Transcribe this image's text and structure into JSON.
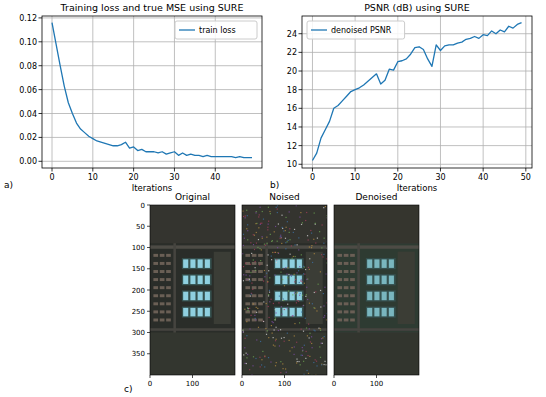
{
  "chart_data": [
    {
      "type": "line",
      "title": "Training loss and true MSE using SURE",
      "x_label": "Iterations",
      "annotations": [
        "a)"
      ],
      "x": [
        0,
        1,
        2,
        3,
        4,
        5,
        6,
        7,
        8,
        9,
        10,
        11,
        12,
        13,
        14,
        15,
        16,
        17,
        18,
        19,
        20,
        21,
        22,
        23,
        24,
        25,
        26,
        27,
        28,
        29,
        30,
        31,
        32,
        33,
        34,
        35,
        36,
        37,
        38,
        39,
        40,
        41,
        42,
        43,
        44,
        45,
        46,
        47,
        48,
        49
      ],
      "series": [
        {
          "name": "train loss",
          "color": "#1f77b4",
          "values": [
            0.116,
            0.098,
            0.08,
            0.063,
            0.049,
            0.04,
            0.032,
            0.027,
            0.024,
            0.021,
            0.019,
            0.017,
            0.016,
            0.015,
            0.014,
            0.013,
            0.013,
            0.014,
            0.016,
            0.011,
            0.012,
            0.009,
            0.01,
            0.008,
            0.008,
            0.008,
            0.007,
            0.008,
            0.006,
            0.007,
            0.008,
            0.005,
            0.007,
            0.005,
            0.006,
            0.005,
            0.005,
            0.004,
            0.005,
            0.004,
            0.004,
            0.004,
            0.004,
            0.004,
            0.004,
            0.003,
            0.004,
            0.003,
            0.003,
            0.003
          ]
        }
      ],
      "xlim": [
        -2.45,
        51.45
      ],
      "xticks": [
        0,
        10,
        20,
        30,
        40
      ],
      "ylim": [
        -0.0056,
        0.1216
      ],
      "yticks": [
        {
          "value": 0,
          "label": "0.00"
        },
        {
          "value": 0.02,
          "label": "0.02"
        },
        {
          "value": 0.04,
          "label": "0.04"
        },
        {
          "value": 0.06,
          "label": "0.06"
        },
        {
          "value": 0.08,
          "label": "0.08"
        },
        {
          "value": 0.1,
          "label": "0.10"
        },
        {
          "value": 0.12,
          "label": "0.12"
        }
      ],
      "grid": true,
      "legend": "upper right"
    },
    {
      "type": "line",
      "title": "PSNR (dB) using SURE",
      "x_label": "Iterations",
      "annotations": [
        "b)"
      ],
      "x": [
        0,
        1,
        2,
        3,
        4,
        5,
        6,
        7,
        8,
        9,
        10,
        11,
        12,
        13,
        14,
        15,
        16,
        17,
        18,
        19,
        20,
        21,
        22,
        23,
        24,
        25,
        26,
        27,
        28,
        29,
        30,
        31,
        32,
        33,
        34,
        35,
        36,
        37,
        38,
        39,
        40,
        41,
        42,
        43,
        44,
        45,
        46,
        47,
        48,
        49
      ],
      "series": [
        {
          "name": "denoised PSNR",
          "color": "#1f77b4",
          "values": [
            10.4,
            11.2,
            12.8,
            13.7,
            14.6,
            16.0,
            16.3,
            16.8,
            17.3,
            17.8,
            18.0,
            18.2,
            18.5,
            18.9,
            19.3,
            19.7,
            18.6,
            19.0,
            20.2,
            20.1,
            21.0,
            21.1,
            21.3,
            21.8,
            22.5,
            22.6,
            22.3,
            21.3,
            20.5,
            22.8,
            22.2,
            22.7,
            22.8,
            22.8,
            23.0,
            23.1,
            23.4,
            23.5,
            23.7,
            23.5,
            23.9,
            23.8,
            24.3,
            24.0,
            24.4,
            24.2,
            24.8,
            24.6,
            25.0,
            25.2
          ]
        }
      ],
      "xlim": [
        -2.45,
        51.45
      ],
      "xticks": [
        0,
        10,
        20,
        30,
        40,
        50
      ],
      "ylim": [
        9.6,
        25.9
      ],
      "yticks": [
        10,
        12,
        14,
        16,
        18,
        20,
        22,
        24
      ],
      "grid": true,
      "legend": "upper left"
    },
    {
      "type": "image",
      "title": "Original",
      "annotations": [
        "c)"
      ],
      "xlim": [
        0,
        200
      ],
      "xticks": [
        0,
        100
      ],
      "ylim": [
        400,
        0
      ],
      "yticks": [
        0,
        50,
        100,
        150,
        200,
        250,
        300,
        350
      ],
      "grid": false
    },
    {
      "type": "image",
      "title": "Noised",
      "xlim": [
        0,
        200
      ],
      "xticks": [
        0,
        100
      ],
      "ylim": [
        400,
        0
      ],
      "grid": false
    },
    {
      "type": "image",
      "title": "Denoised",
      "xlim": [
        0,
        200
      ],
      "xticks": [
        0,
        100
      ],
      "ylim": [
        400,
        0
      ],
      "grid": false
    }
  ]
}
